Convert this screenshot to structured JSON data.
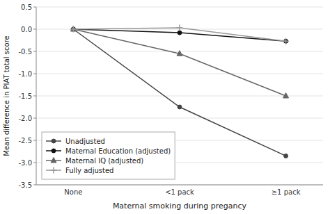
{
  "chart_data": {
    "type": "line",
    "categories": [
      "None",
      "<1 pack",
      "≥1 pack"
    ],
    "series": [
      {
        "name": "Unadjusted",
        "color": "#444444",
        "marker": "circle",
        "line_style": "solid",
        "values": [
          0.0,
          -1.75,
          -2.85
        ]
      },
      {
        "name": "Maternal Education (adjusted)",
        "color": "#111111",
        "marker": "circle",
        "line_style": "solid",
        "values": [
          0.0,
          -0.08,
          -0.27
        ]
      },
      {
        "name": "Maternal IQ (adjusted)",
        "color": "#666666",
        "marker": "triangle",
        "line_style": "solid",
        "values": [
          0.0,
          -0.55,
          -1.5
        ]
      },
      {
        "name": "Fully adjusted",
        "color": "#999999",
        "marker": "plus",
        "line_style": "solid",
        "values": [
          0.0,
          0.03,
          -0.27
        ]
      }
    ],
    "xlabel": "Maternal smoking during pregancy",
    "ylabel": "Mean difference in PIAT total score",
    "ylim": [
      -3.5,
      0.5
    ],
    "yticks": [
      0.5,
      {
        "value": 0.0,
        "label": "0.0"
      },
      -0.5,
      {
        "value": -1.0,
        "label": "-1.0"
      },
      -1.5,
      {
        "value": -2.0,
        "label": "-2.0"
      },
      -2.5,
      {
        "value": -3.0,
        "label": "-3.0"
      },
      -3.5
    ],
    "grid": true,
    "legend": "lower left"
  }
}
